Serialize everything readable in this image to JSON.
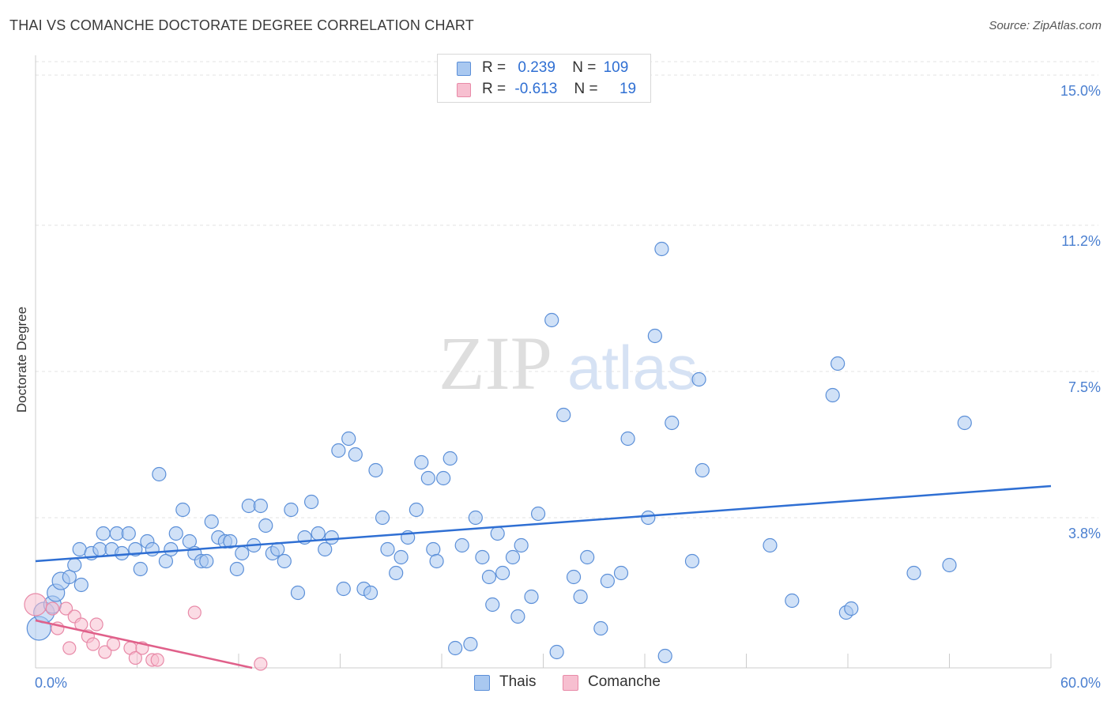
{
  "title": "THAI VS COMANCHE DOCTORATE DEGREE CORRELATION CHART",
  "source": "Source: ZipAtlas.com",
  "watermark": {
    "zip": "ZIP",
    "atlas": "atlas"
  },
  "legend": {
    "rows": [
      {
        "r_label": "R =",
        "r_value": "0.239",
        "n_label": "N =",
        "n_value": "109"
      },
      {
        "r_label": "R =",
        "r_value": "-0.613",
        "n_label": "N =",
        "n_value": "19"
      }
    ]
  },
  "bottom_legend": {
    "thais": "Thais",
    "comanche": "Comanche"
  },
  "colors": {
    "thais_fill": "#a9c8f0",
    "thais_stroke": "#5b8fd8",
    "thais_line": "#2f6fd3",
    "comanche_fill": "#f7bfd0",
    "comanche_stroke": "#e88aa8",
    "comanche_line": "#e0608a",
    "grid": "#e3e3e3",
    "tick_text": "#4a7fd0"
  },
  "chart_data": {
    "type": "scatter",
    "title": "THAI VS COMANCHE DOCTORATE DEGREE CORRELATION CHART",
    "xlabel": "",
    "ylabel": "Doctorate Degree",
    "xlim": [
      0,
      60
    ],
    "ylim": [
      0,
      15.5
    ],
    "x_tick_labels": [
      "0.0%",
      "60.0%"
    ],
    "y_ticks": [
      3.8,
      7.5,
      11.2,
      15.0
    ],
    "y_tick_labels": [
      "3.8%",
      "7.5%",
      "11.2%",
      "15.0%"
    ],
    "grid": "horizontal dashed",
    "legend_position": "top-center",
    "series": [
      {
        "name": "Thais",
        "r": 0.239,
        "n": 109,
        "trend": {
          "x": [
            0,
            60
          ],
          "y": [
            2.7,
            4.6
          ]
        },
        "points": [
          [
            0.2,
            1.0
          ],
          [
            0.5,
            1.4
          ],
          [
            1.0,
            1.6
          ],
          [
            1.2,
            1.9
          ],
          [
            1.5,
            2.2
          ],
          [
            2.0,
            2.3
          ],
          [
            2.3,
            2.6
          ],
          [
            2.7,
            2.1
          ],
          [
            2.6,
            3.0
          ],
          [
            3.3,
            2.9
          ],
          [
            3.8,
            3.0
          ],
          [
            4.0,
            3.4
          ],
          [
            4.5,
            3.0
          ],
          [
            4.8,
            3.4
          ],
          [
            5.1,
            2.9
          ],
          [
            5.5,
            3.4
          ],
          [
            5.9,
            3.0
          ],
          [
            6.2,
            2.5
          ],
          [
            6.6,
            3.2
          ],
          [
            6.9,
            3.0
          ],
          [
            7.3,
            4.9
          ],
          [
            7.7,
            2.7
          ],
          [
            8.0,
            3.0
          ],
          [
            8.3,
            3.4
          ],
          [
            8.7,
            4.0
          ],
          [
            9.1,
            3.2
          ],
          [
            9.4,
            2.9
          ],
          [
            9.8,
            2.7
          ],
          [
            10.1,
            2.7
          ],
          [
            10.4,
            3.7
          ],
          [
            10.8,
            3.3
          ],
          [
            11.2,
            3.2
          ],
          [
            11.5,
            3.2
          ],
          [
            11.9,
            2.5
          ],
          [
            12.2,
            2.9
          ],
          [
            12.6,
            4.1
          ],
          [
            12.9,
            3.1
          ],
          [
            13.3,
            4.1
          ],
          [
            13.6,
            3.6
          ],
          [
            14.0,
            2.9
          ],
          [
            14.3,
            3.0
          ],
          [
            14.7,
            2.7
          ],
          [
            15.1,
            4.0
          ],
          [
            15.5,
            1.9
          ],
          [
            15.9,
            3.3
          ],
          [
            16.3,
            4.2
          ],
          [
            16.7,
            3.4
          ],
          [
            17.1,
            3.0
          ],
          [
            17.5,
            3.3
          ],
          [
            17.9,
            5.5
          ],
          [
            18.2,
            2.0
          ],
          [
            18.5,
            5.8
          ],
          [
            18.9,
            5.4
          ],
          [
            19.4,
            2.0
          ],
          [
            19.8,
            1.9
          ],
          [
            20.1,
            5.0
          ],
          [
            20.5,
            3.8
          ],
          [
            20.8,
            3.0
          ],
          [
            21.3,
            2.4
          ],
          [
            21.6,
            2.8
          ],
          [
            22.0,
            3.3
          ],
          [
            22.5,
            4.0
          ],
          [
            22.8,
            5.2
          ],
          [
            23.2,
            4.8
          ],
          [
            23.5,
            3.0
          ],
          [
            23.7,
            2.7
          ],
          [
            24.1,
            4.8
          ],
          [
            24.5,
            5.3
          ],
          [
            24.8,
            0.5
          ],
          [
            25.2,
            3.1
          ],
          [
            25.7,
            0.6
          ],
          [
            26.0,
            3.8
          ],
          [
            26.4,
            2.8
          ],
          [
            26.8,
            2.3
          ],
          [
            27.0,
            1.6
          ],
          [
            27.3,
            3.4
          ],
          [
            27.6,
            2.4
          ],
          [
            28.2,
            2.8
          ],
          [
            28.5,
            1.3
          ],
          [
            28.7,
            3.1
          ],
          [
            29.3,
            1.8
          ],
          [
            29.7,
            3.9
          ],
          [
            30.5,
            8.8
          ],
          [
            30.8,
            0.4
          ],
          [
            31.2,
            6.4
          ],
          [
            31.8,
            2.3
          ],
          [
            32.2,
            1.8
          ],
          [
            32.6,
            2.8
          ],
          [
            33.4,
            1.0
          ],
          [
            33.8,
            2.2
          ],
          [
            34.6,
            2.4
          ],
          [
            35.0,
            5.8
          ],
          [
            36.2,
            3.8
          ],
          [
            36.6,
            8.4
          ],
          [
            37.0,
            10.6
          ],
          [
            37.2,
            0.3
          ],
          [
            37.6,
            6.2
          ],
          [
            38.8,
            2.7
          ],
          [
            39.2,
            7.3
          ],
          [
            39.4,
            5.0
          ],
          [
            43.4,
            3.1
          ],
          [
            44.7,
            1.7
          ],
          [
            47.1,
            6.9
          ],
          [
            47.4,
            7.7
          ],
          [
            47.9,
            1.4
          ],
          [
            48.2,
            1.5
          ],
          [
            51.9,
            2.4
          ],
          [
            54.0,
            2.6
          ],
          [
            54.9,
            6.2
          ]
        ]
      },
      {
        "name": "Comanche",
        "r": -0.613,
        "n": 19,
        "trend": {
          "x": [
            0,
            12.8
          ],
          "y": [
            1.2,
            0.0
          ]
        },
        "points": [
          [
            0.0,
            1.6
          ],
          [
            1.0,
            1.5
          ],
          [
            1.3,
            1.0
          ],
          [
            1.8,
            1.5
          ],
          [
            2.0,
            0.5
          ],
          [
            2.3,
            1.3
          ],
          [
            2.7,
            1.1
          ],
          [
            3.1,
            0.8
          ],
          [
            3.4,
            0.6
          ],
          [
            3.6,
            1.1
          ],
          [
            4.1,
            0.4
          ],
          [
            4.6,
            0.6
          ],
          [
            5.6,
            0.5
          ],
          [
            5.9,
            0.25
          ],
          [
            6.3,
            0.5
          ],
          [
            6.9,
            0.2
          ],
          [
            7.2,
            0.2
          ],
          [
            9.4,
            1.4
          ],
          [
            13.3,
            0.1
          ]
        ]
      }
    ]
  }
}
